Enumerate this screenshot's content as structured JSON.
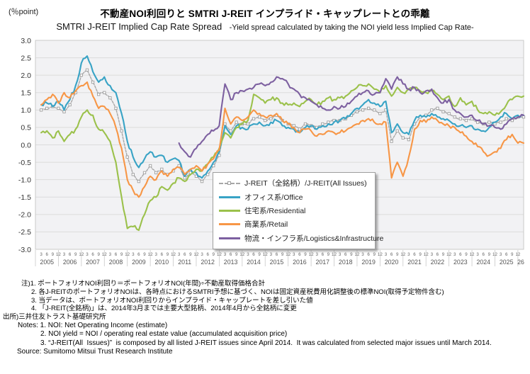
{
  "chart_data": {
    "type": "line",
    "title": "不動産NOI利回りと SMTRI J-REIT インプライド・キャップレートとの乖離",
    "subtitle": "SMTRI J-REIT Implied Cap Rate Spread",
    "subtitle_note": "-Yield spread calculated by taking the NOI yield less Implied Cap Rate-",
    "ylabel": "(％point)",
    "ylim": [
      -3.0,
      3.0
    ],
    "y_tick_step": 0.5,
    "x_frequency": "quarterly",
    "x_month_ticks": [
      3,
      6,
      9,
      12
    ],
    "x_years": [
      "2005",
      "2006",
      "2007",
      "2008",
      "2009",
      "2010",
      "2011",
      "2012",
      "2013",
      "2014",
      "2015",
      "2016",
      "2017",
      "2018",
      "2019",
      "2020",
      "2021",
      "2022",
      "2023",
      "2024",
      "2025"
    ],
    "x_end_label": "26",
    "grid": true,
    "legend_position": "center-right",
    "series": [
      {
        "key": "all-issues",
        "label": "J-REIT（全銘柄）/J-REIT(All Issues)",
        "color": "#A7A7A7",
        "line_style": "dashed",
        "marker": "square",
        "values": [
          1.0,
          1.05,
          1.1,
          1.05,
          0.95,
          1.15,
          1.5,
          2.0,
          2.15,
          1.8,
          1.45,
          1.5,
          1.35,
          1.05,
          0.4,
          -0.35,
          -0.85,
          -1.05,
          -0.8,
          -0.6,
          -0.8,
          -0.7,
          -0.85,
          -0.75,
          -0.6,
          -0.95,
          -0.8,
          -0.9,
          -1.05,
          -0.85,
          -0.6,
          -0.3,
          0.6,
          0.4,
          0.65,
          0.6,
          0.6,
          0.75,
          0.8,
          0.7,
          0.75,
          0.85,
          0.7,
          0.6,
          0.55,
          0.45,
          0.6,
          0.55,
          0.5,
          0.6,
          0.65,
          0.7,
          0.7,
          0.75,
          0.85,
          0.95,
          1.0,
          1.05,
          1.0,
          0.9,
          1.0,
          0.1,
          0.4,
          0.2,
          0.15,
          0.6,
          0.8,
          0.85,
          1.0,
          1.05,
          0.95,
          0.9,
          0.8,
          0.75,
          0.7,
          0.75,
          0.65,
          0.6,
          0.65,
          0.6,
          0.65,
          0.75,
          0.7,
          0.8,
          0.8
        ]
      },
      {
        "key": "office",
        "label": "オフィス系/Office",
        "color": "#38A3C5",
        "line_style": "solid",
        "marker": "none",
        "values": [
          1.15,
          1.2,
          1.1,
          1.25,
          1.0,
          1.3,
          1.7,
          2.35,
          2.55,
          2.1,
          1.8,
          1.95,
          1.7,
          1.5,
          0.9,
          0.1,
          -0.35,
          -0.65,
          -0.4,
          -0.2,
          -0.35,
          -0.3,
          -0.5,
          -0.4,
          -0.45,
          -0.9,
          -0.7,
          -0.8,
          -0.95,
          -0.75,
          -0.5,
          -0.2,
          0.55,
          0.3,
          0.55,
          0.5,
          0.45,
          0.6,
          0.65,
          0.55,
          0.65,
          0.7,
          0.55,
          0.5,
          0.45,
          0.35,
          0.5,
          0.55,
          0.45,
          0.55,
          0.6,
          0.65,
          0.7,
          0.75,
          0.9,
          1.05,
          1.15,
          1.3,
          1.2,
          1.1,
          1.25,
          0.35,
          0.6,
          0.35,
          0.3,
          0.7,
          0.85,
          0.8,
          0.9,
          0.8,
          0.75,
          0.7,
          0.6,
          0.55,
          0.5,
          0.55,
          0.45,
          0.4,
          0.5,
          0.65,
          0.8,
          0.9,
          0.75,
          0.85,
          0.85
        ]
      },
      {
        "key": "residential",
        "label": "住宅系/Residential",
        "color": "#9BC14B",
        "line_style": "solid",
        "marker": "none",
        "values": [
          0.35,
          0.4,
          0.2,
          0.4,
          0.1,
          0.3,
          0.45,
          0.8,
          1.0,
          0.85,
          0.45,
          0.35,
          0.1,
          -0.5,
          -1.5,
          -2.4,
          -2.35,
          -2.45,
          -2.0,
          -1.6,
          -1.5,
          -1.2,
          -1.3,
          -1.1,
          -0.95,
          -1.05,
          -0.85,
          -0.7,
          -0.75,
          -0.55,
          -0.35,
          -0.1,
          0.35,
          0.2,
          0.5,
          0.6,
          0.7,
          1.45,
          1.35,
          1.2,
          1.3,
          1.35,
          1.2,
          1.15,
          1.2,
          1.1,
          1.25,
          1.3,
          1.15,
          1.25,
          1.35,
          1.3,
          1.35,
          1.4,
          1.55,
          1.65,
          1.7,
          1.75,
          1.6,
          1.5,
          1.7,
          1.4,
          1.65,
          1.5,
          1.6,
          1.65,
          1.55,
          1.5,
          1.55,
          1.45,
          1.3,
          1.4,
          1.1,
          1.35,
          1.15,
          1.25,
          1.0,
          0.9,
          0.95,
          0.85,
          0.95,
          1.15,
          1.3,
          1.4,
          1.4
        ]
      },
      {
        "key": "retail",
        "label": "商業系/Retail",
        "color": "#F79646",
        "line_style": "solid",
        "marker": "none",
        "values": [
          1.15,
          1.3,
          1.45,
          1.2,
          1.5,
          1.35,
          1.55,
          1.7,
          1.8,
          1.4,
          1.05,
          1.1,
          0.9,
          0.5,
          -0.1,
          -1.0,
          -1.3,
          -1.5,
          -1.2,
          -0.9,
          -1.0,
          -0.75,
          -0.9,
          -0.7,
          -0.65,
          -0.85,
          -0.7,
          -0.6,
          -0.75,
          -0.55,
          -0.4,
          -0.15,
          1.05,
          0.6,
          0.8,
          0.7,
          0.8,
          1.0,
          0.9,
          0.8,
          0.85,
          0.9,
          0.7,
          0.6,
          0.5,
          0.35,
          0.45,
          0.4,
          0.25,
          0.3,
          0.4,
          0.35,
          0.35,
          0.4,
          0.5,
          0.6,
          0.7,
          0.75,
          0.65,
          0.6,
          0.65,
          -0.95,
          -0.5,
          -0.9,
          -0.35,
          0.45,
          0.7,
          0.65,
          0.8,
          0.7,
          0.6,
          0.55,
          0.5,
          0.35,
          0.25,
          0.1,
          -0.05,
          -0.2,
          -0.3,
          -0.2,
          -0.1,
          0.15,
          0.3,
          0.05,
          0.05
        ]
      },
      {
        "key": "logistics",
        "label": "物流・インフラ系/Logistics&Infrastructure",
        "color": "#7D60A0",
        "line_style": "solid",
        "marker": "none",
        "values": [
          null,
          null,
          null,
          null,
          null,
          null,
          null,
          null,
          null,
          null,
          null,
          null,
          null,
          null,
          null,
          null,
          null,
          null,
          null,
          null,
          null,
          null,
          null,
          null,
          0.05,
          -0.2,
          -0.35,
          -0.1,
          0.1,
          0.3,
          0.4,
          0.55,
          1.75,
          1.3,
          1.5,
          1.55,
          1.6,
          1.65,
          1.75,
          1.7,
          1.8,
          1.95,
          1.9,
          1.75,
          1.6,
          1.45,
          1.35,
          1.25,
          1.15,
          1.05,
          1.0,
          1.1,
          1.05,
          1.1,
          1.25,
          1.4,
          1.5,
          1.55,
          1.45,
          1.5,
          1.9,
          1.6,
          1.95,
          1.75,
          1.6,
          1.65,
          1.5,
          1.55,
          1.6,
          1.35,
          1.2,
          1.3,
          1.0,
          0.9,
          0.8,
          0.85,
          0.7,
          0.6,
          0.55,
          0.5,
          0.45,
          0.6,
          0.75,
          0.8,
          0.85
        ]
      }
    ]
  },
  "notes_jp": [
    "注)1. ポートフォリオNOI利回り＝ポートフォリオNOI(年間)÷不動産取得価格合計",
    "2. 各J-REITのポートフォリオNOIは、各時点におけるSMTRI予想に基づく、NOIは固定資産税費用化調整後の標準NOI(取得予定物件含む)",
    "3. 当データは、ポートフォリオNOI利回りからインプライド・キャップレートを差し引いた値",
    "4. 「J-REIT(全銘柄)」は、2014年3月までは主要大型銘柄、2014年4月から全銘柄に変更"
  ],
  "source_jp": "出所)三井住友トラスト基礎研究所",
  "notes_en": [
    "Notes: 1. NOI: Net Operating Income (estimate)",
    "2. NOI yield = NOI / operating real estate value (accumulated acquisition price)",
    "3. “J-REIT(All  Issues)”  is composed by all listed J-REIT issues since April 2014.  It was calculated from selected major issues until March 2014."
  ],
  "source_en": "Source: Sumitomo Mitsui Trust Research Institute"
}
